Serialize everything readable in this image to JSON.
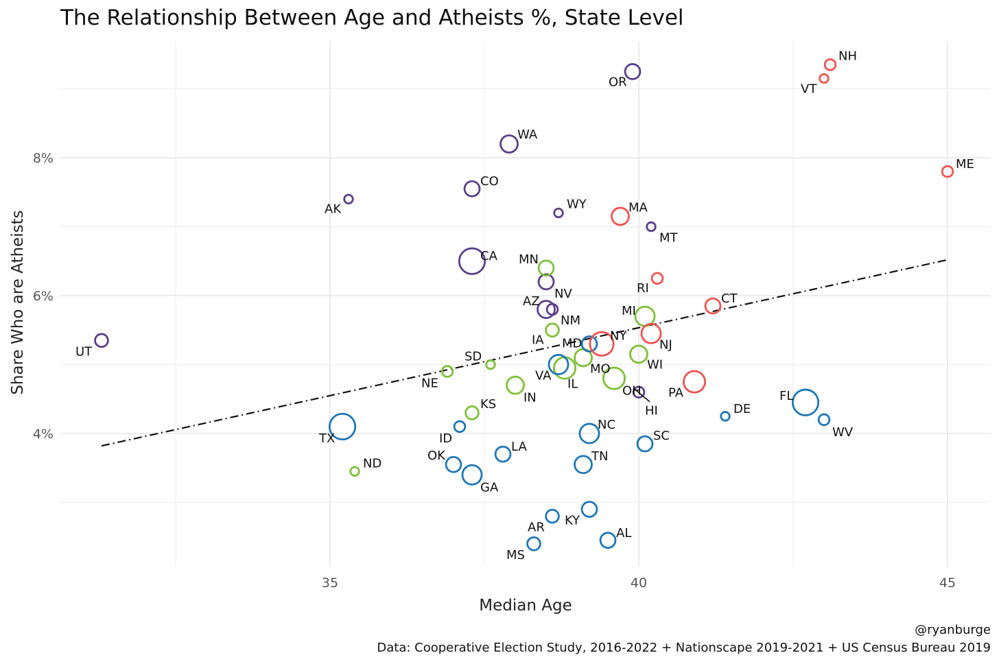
{
  "chart_data": {
    "type": "scatter",
    "title": "The Relationship Between Age and Atheists %, State Level",
    "xlabel": "Median Age",
    "ylabel": "Share Who are Atheists",
    "xlim": [
      31.3,
      45.7
    ],
    "ylim": [
      2.1,
      9.95
    ],
    "x_ticks": [
      35,
      40,
      45
    ],
    "x_tick_labels": [
      "35",
      "40",
      "45"
    ],
    "y_ticks": [
      4,
      6,
      8
    ],
    "y_tick_labels": [
      "4%",
      "6%",
      "8%"
    ],
    "grid": true,
    "legend": "none",
    "trend_line": {
      "style": "dash-dot",
      "x": [
        31.3,
        45.0
      ],
      "y": [
        3.82,
        6.52
      ]
    },
    "colors": {
      "purple": "#5b3f8a",
      "green": "#7fbf3a",
      "blue": "#1f76b4",
      "red": "#ef5350"
    },
    "points": [
      {
        "label": "UT",
        "x": 31.3,
        "y": 5.35,
        "size": 4,
        "color": "purple"
      },
      {
        "label": "AK",
        "x": 35.3,
        "y": 7.4,
        "size": 2,
        "color": "purple"
      },
      {
        "label": "WA",
        "x": 37.9,
        "y": 8.2,
        "size": 6,
        "color": "purple"
      },
      {
        "label": "CO",
        "x": 37.3,
        "y": 7.55,
        "size": 5,
        "color": "purple"
      },
      {
        "label": "CA",
        "x": 37.3,
        "y": 6.5,
        "size": 10,
        "color": "purple"
      },
      {
        "label": "OR",
        "x": 39.9,
        "y": 9.25,
        "size": 5,
        "color": "purple"
      },
      {
        "label": "WY",
        "x": 38.7,
        "y": 7.2,
        "size": 2,
        "color": "purple"
      },
      {
        "label": "MT",
        "x": 40.2,
        "y": 7.0,
        "size": 2,
        "color": "purple"
      },
      {
        "label": "NV",
        "x": 38.5,
        "y": 6.2,
        "size": 5,
        "color": "purple"
      },
      {
        "label": "AZ",
        "x": 38.5,
        "y": 5.8,
        "size": 6,
        "color": "purple"
      },
      {
        "label": "NM",
        "x": 38.6,
        "y": 5.8,
        "size": 3,
        "color": "purple"
      },
      {
        "label": "HI",
        "x": 40.0,
        "y": 4.6,
        "size": 3,
        "color": "purple"
      },
      {
        "label": "MN",
        "x": 38.5,
        "y": 6.4,
        "size": 5,
        "color": "green"
      },
      {
        "label": "IA",
        "x": 38.6,
        "y": 5.5,
        "size": 4,
        "color": "green"
      },
      {
        "label": "MI",
        "x": 40.1,
        "y": 5.7,
        "size": 7,
        "color": "green"
      },
      {
        "label": "WI",
        "x": 40.0,
        "y": 5.15,
        "size": 6,
        "color": "green"
      },
      {
        "label": "MO",
        "x": 39.1,
        "y": 5.1,
        "size": 6,
        "color": "green"
      },
      {
        "label": "OH",
        "x": 39.6,
        "y": 4.8,
        "size": 8,
        "color": "green"
      },
      {
        "label": "IL",
        "x": 38.8,
        "y": 4.95,
        "size": 8,
        "color": "green"
      },
      {
        "label": "SD",
        "x": 37.6,
        "y": 5.0,
        "size": 2,
        "color": "green"
      },
      {
        "label": "NE",
        "x": 36.9,
        "y": 4.9,
        "size": 3,
        "color": "green"
      },
      {
        "label": "IN",
        "x": 38.0,
        "y": 4.7,
        "size": 6,
        "color": "green"
      },
      {
        "label": "KS",
        "x": 37.3,
        "y": 4.3,
        "size": 4,
        "color": "green"
      },
      {
        "label": "ND",
        "x": 35.4,
        "y": 3.45,
        "size": 2,
        "color": "green"
      },
      {
        "label": "MD",
        "x": 39.2,
        "y": 5.3,
        "size": 5,
        "color": "blue"
      },
      {
        "label": "VA",
        "x": 38.7,
        "y": 5.0,
        "size": 7,
        "color": "blue"
      },
      {
        "label": "DE",
        "x": 41.4,
        "y": 4.25,
        "size": 2,
        "color": "blue"
      },
      {
        "label": "FL",
        "x": 42.7,
        "y": 4.45,
        "size": 10,
        "color": "blue"
      },
      {
        "label": "WV",
        "x": 43.0,
        "y": 4.2,
        "size": 3,
        "color": "blue"
      },
      {
        "label": "TX",
        "x": 35.2,
        "y": 4.1,
        "size": 10,
        "color": "blue"
      },
      {
        "label": "ID",
        "x": 37.1,
        "y": 4.1,
        "size": 3,
        "color": "blue"
      },
      {
        "label": "NC",
        "x": 39.2,
        "y": 4.0,
        "size": 7,
        "color": "blue"
      },
      {
        "label": "SC",
        "x": 40.1,
        "y": 3.85,
        "size": 5,
        "color": "blue"
      },
      {
        "label": "LA",
        "x": 37.8,
        "y": 3.7,
        "size": 5,
        "color": "blue"
      },
      {
        "label": "OK",
        "x": 37.0,
        "y": 3.55,
        "size": 5,
        "color": "blue"
      },
      {
        "label": "GA",
        "x": 37.3,
        "y": 3.4,
        "size": 7,
        "color": "blue"
      },
      {
        "label": "TN",
        "x": 39.1,
        "y": 3.55,
        "size": 6,
        "color": "blue"
      },
      {
        "label": "KY",
        "x": 39.2,
        "y": 2.9,
        "size": 5,
        "color": "blue"
      },
      {
        "label": "AR",
        "x": 38.6,
        "y": 2.8,
        "size": 4,
        "color": "blue"
      },
      {
        "label": "AL",
        "x": 39.5,
        "y": 2.45,
        "size": 5,
        "color": "blue"
      },
      {
        "label": "MS",
        "x": 38.3,
        "y": 2.4,
        "size": 4,
        "color": "blue"
      },
      {
        "label": "NH",
        "x": 43.1,
        "y": 9.35,
        "size": 3,
        "color": "red"
      },
      {
        "label": "VT",
        "x": 43.0,
        "y": 9.15,
        "size": 2,
        "color": "red"
      },
      {
        "label": "ME",
        "x": 45.0,
        "y": 7.8,
        "size": 3,
        "color": "red"
      },
      {
        "label": "MA",
        "x": 39.7,
        "y": 7.15,
        "size": 6,
        "color": "red"
      },
      {
        "label": "RI",
        "x": 40.3,
        "y": 6.25,
        "size": 3,
        "color": "red"
      },
      {
        "label": "CT",
        "x": 41.2,
        "y": 5.85,
        "size": 5,
        "color": "red"
      },
      {
        "label": "NY",
        "x": 39.4,
        "y": 5.3,
        "size": 9,
        "color": "red"
      },
      {
        "label": "NJ",
        "x": 40.2,
        "y": 5.45,
        "size": 7,
        "color": "red"
      },
      {
        "label": "PA",
        "x": 40.9,
        "y": 4.75,
        "size": 8,
        "color": "red"
      }
    ]
  },
  "captions": {
    "credit": "@ryanburge",
    "source": "Data: Cooperative Election Study, 2016-2022 + Nationscape 2019-2021 + US Census Bureau 2019"
  }
}
